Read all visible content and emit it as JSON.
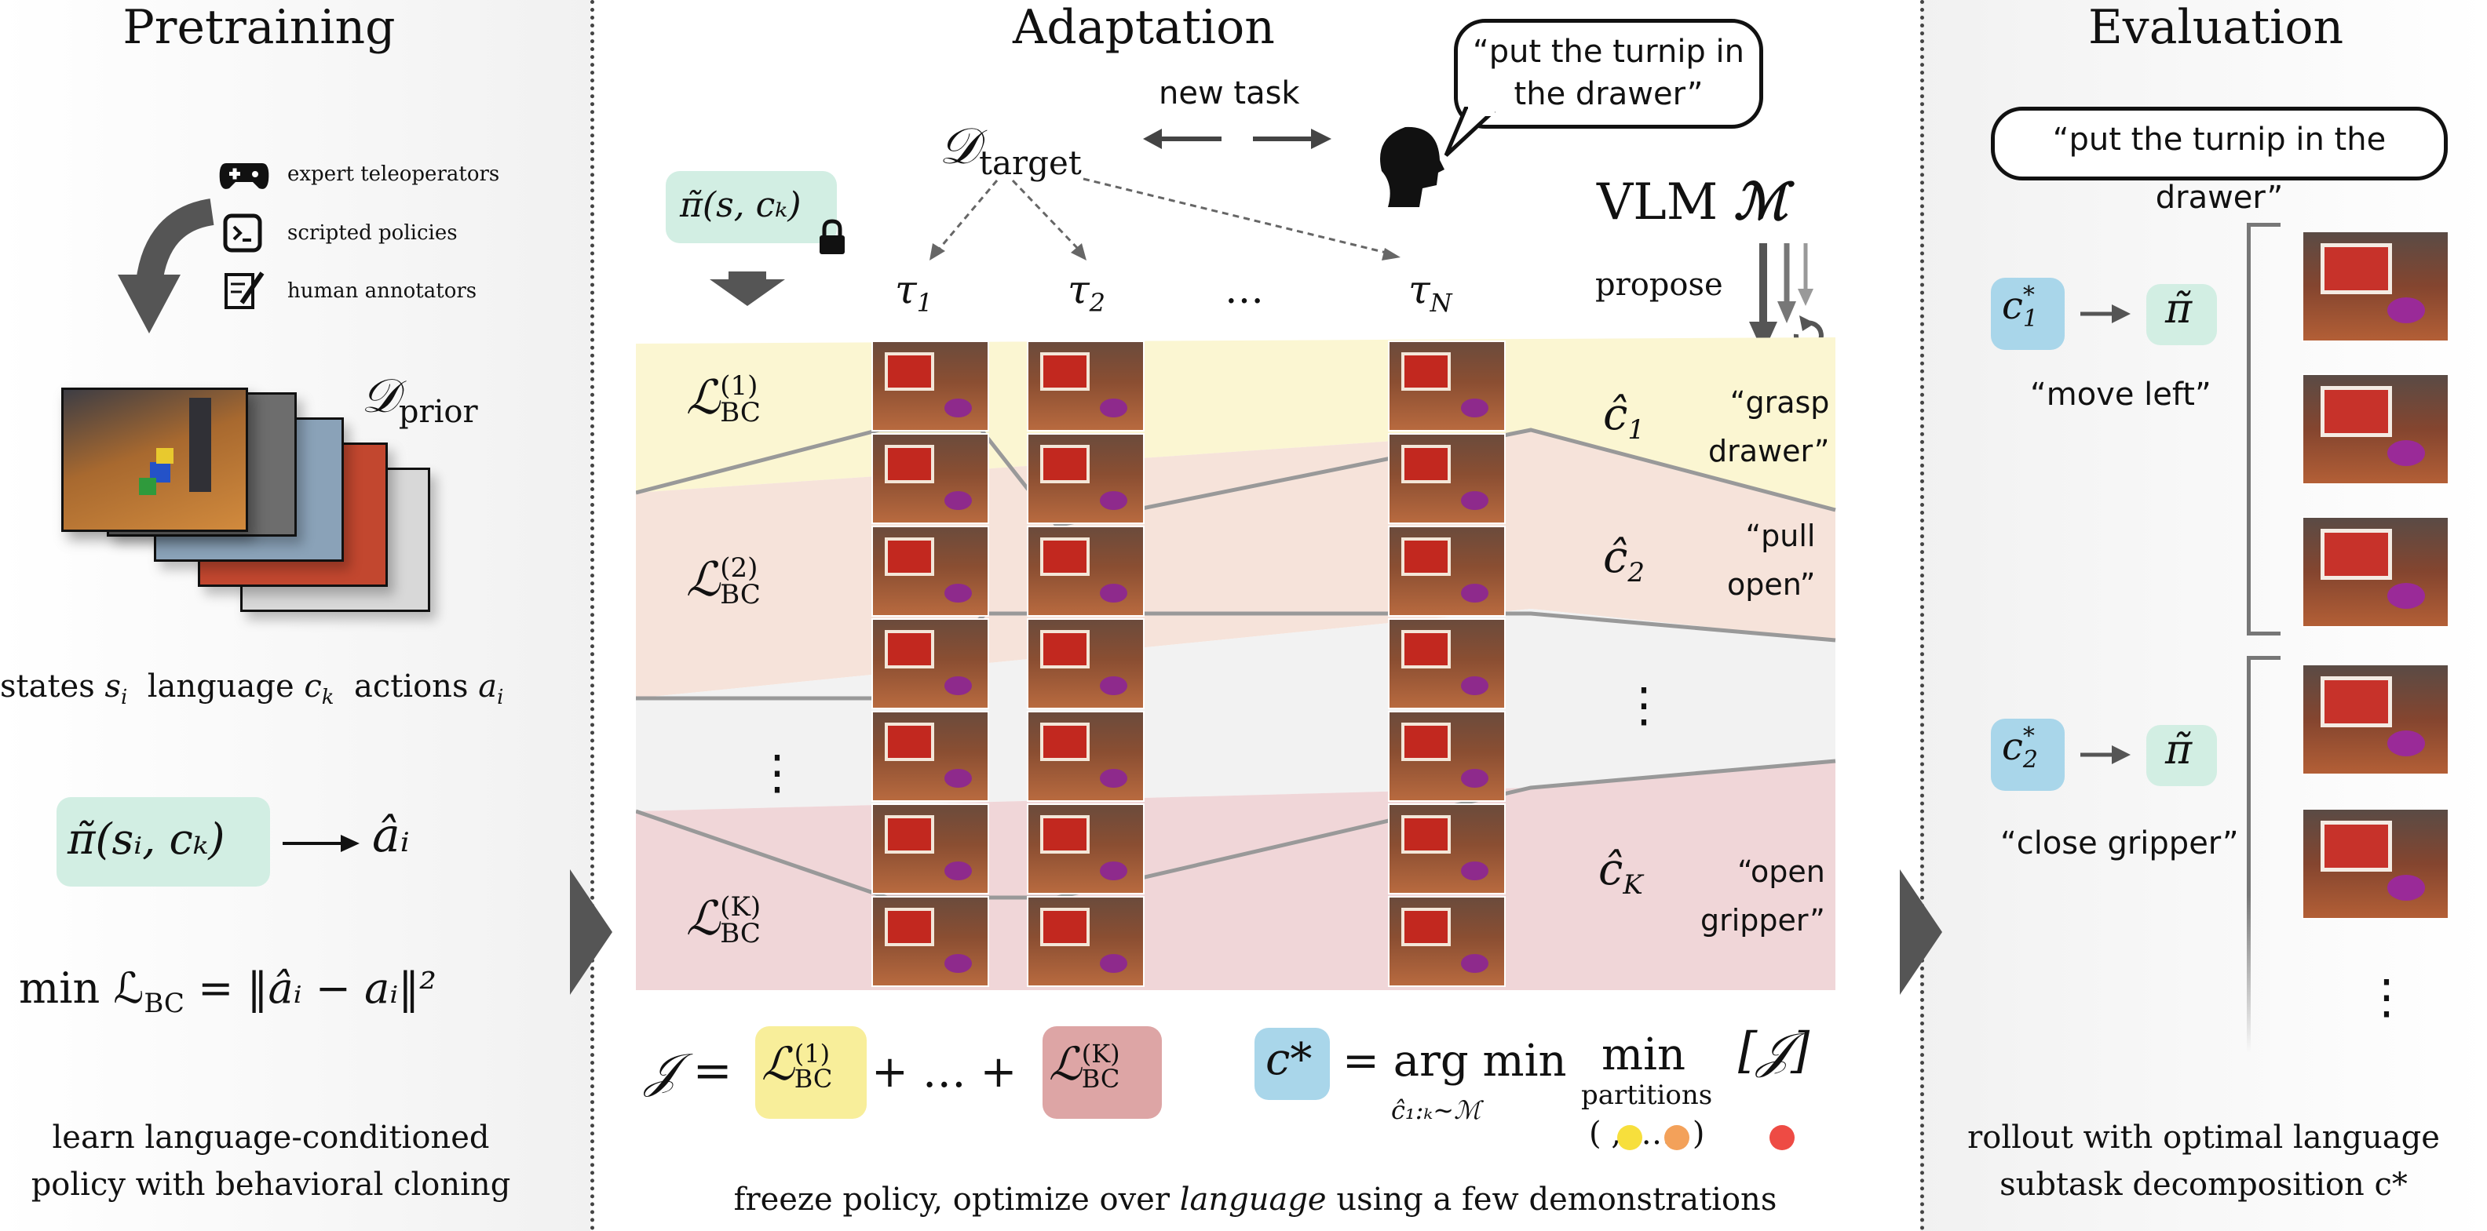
{
  "pretraining": {
    "title": "Pretraining",
    "sources": [
      "expert teleoperators",
      "scripted policies",
      "human annotators"
    ],
    "prior_dataset": "𝒟",
    "prior_sub": "prior",
    "vars_states": "states",
    "vars_states_sym": "s",
    "vars_states_sub": "i",
    "vars_language": "language",
    "vars_language_sym": "c",
    "vars_language_sub": "k",
    "vars_actions": "actions",
    "vars_actions_sym": "a",
    "vars_actions_sub": "i",
    "policy_expr": "π̃(sᵢ, cₖ)",
    "policy_output": "âᵢ",
    "loss_expr": "min ℒ",
    "loss_sub": "BC",
    "loss_rhs": " = ‖âᵢ − aᵢ‖²",
    "caption_line1": "learn language-conditioned",
    "caption_line2": "policy with behavioral cloning"
  },
  "adaptation": {
    "title": "Adaptation",
    "new_task": "new task",
    "speech": "“put the turnip in the drawer”",
    "target_dataset": "𝒟",
    "target_sub": "target",
    "frozen_policy": "π̃(s, cₖ)",
    "vlm": "VLM",
    "vlm_symbol": "ℳ",
    "propose": "propose",
    "trajectories": [
      {
        "sym": "τ",
        "sub": "1"
      },
      {
        "sym": "τ",
        "sub": "2"
      },
      {
        "sym": "…",
        "sub": ""
      },
      {
        "sym": "τ",
        "sub": "N"
      }
    ],
    "losses": [
      {
        "sym": "ℒ",
        "sup": "(1)",
        "sub": "BC"
      },
      {
        "sym": "ℒ",
        "sup": "(2)",
        "sub": "BC"
      },
      {
        "sym": "⋮",
        "sup": "",
        "sub": ""
      },
      {
        "sym": "ℒ",
        "sup": "(K)",
        "sub": "BC"
      }
    ],
    "proposals": [
      {
        "sym": "ĉ",
        "sub": "1",
        "text_line1": "“grasp",
        "text_line2": "drawer”"
      },
      {
        "sym": "ĉ",
        "sub": "2",
        "text_line1": "“pull",
        "text_line2": "open”"
      },
      {
        "sym": "⋮",
        "sub": "",
        "text_line1": "",
        "text_line2": ""
      },
      {
        "sym": "ĉ",
        "sub": "K",
        "text_line1": "“open",
        "text_line2": "gripper”"
      }
    ],
    "objective_lhs": "𝒥 =",
    "objective_mid": "+ … +",
    "objective_loss_first": {
      "sup": "(1)",
      "sub": "BC"
    },
    "objective_loss_last": {
      "sup": "(K)",
      "sub": "BC"
    },
    "argmin_lhs": "c*",
    "argmin_eq": "= arg min",
    "argmin_sub": "ĉ₁:ₖ∼ℳ",
    "min_word": "min",
    "min_sub": "partitions",
    "min_bracket": "[𝒥]",
    "partition_glyphs": "( , ,…, )",
    "caption_pre": "freeze policy, optimize over",
    "caption_em": "language",
    "caption_post": "using a few demonstrations"
  },
  "evaluation": {
    "title": "Evaluation",
    "instruction": "“put the turnip in the drawer”",
    "steps": [
      {
        "c": "c",
        "sup": "*",
        "sub": "1",
        "policy": "π̃",
        "text": "“move left”"
      },
      {
        "c": "c",
        "sup": "*",
        "sub": "2",
        "policy": "π̃",
        "text": "“close gripper”"
      }
    ],
    "more": "⋮",
    "caption_line1": "rollout with optimal language",
    "caption_line2": "subtask decomposition c*"
  },
  "colors": {
    "yellow_band": "#fbf6d2",
    "orange_band": "#f6e3da",
    "gray_band": "#f2f2f2",
    "red_band": "#f0d6d8",
    "green_box": "#d2eee3",
    "blue_box": "#a9d6ea",
    "yellow_box": "#f8ee9a",
    "red_box": "#dda5a5",
    "partition_yellow": "#f7df3c",
    "partition_orange": "#f3a15a",
    "partition_red": "#ee4b44"
  }
}
